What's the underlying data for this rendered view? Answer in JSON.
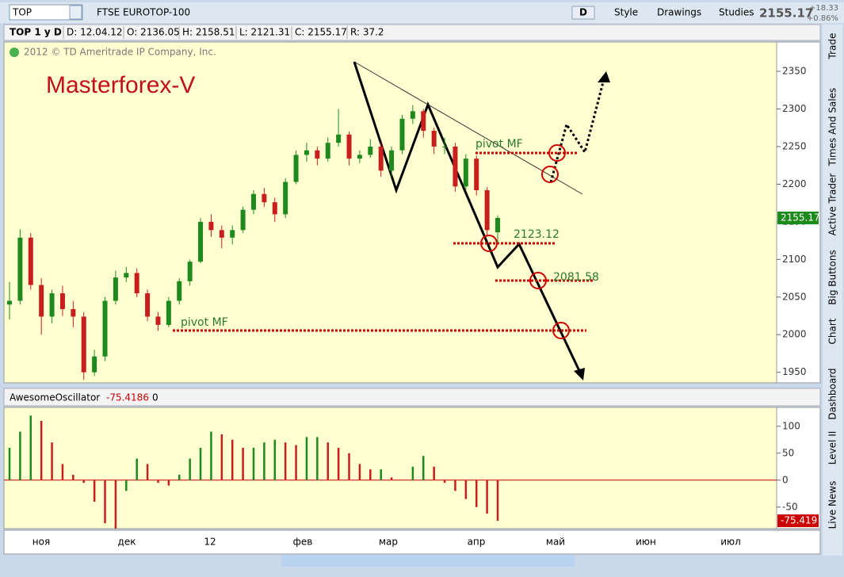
{
  "toolbar": {
    "symbol": "TOP",
    "name": "FTSE EUROTOP-100",
    "buttons": [
      "D",
      "Style",
      "Drawings",
      "Studies"
    ],
    "last": "2155.17",
    "change": "+18.33",
    "change_pct": "+0.86%"
  },
  "info": [
    "TOP 1 y D",
    "D: 12.04.12",
    "O: 2136.05",
    "H: 2158.51",
    "L: 2121.31",
    "C: 2155.17",
    "R: 37.2"
  ],
  "copyright": "2012 © TD Ameritrade IP Company, Inc.",
  "watermark": "Masterforex-V",
  "annotations": [
    "pivot MF",
    "pivot MF",
    "2123.12",
    "2081.58"
  ],
  "months": [
    "ноя",
    "дек",
    "12",
    "фев",
    "мар",
    "апр",
    "май",
    "июн",
    "июл"
  ],
  "side_tabs": [
    "Trade",
    "Times And Sales",
    "Active Trader",
    "Big Buttons",
    "Chart",
    "Dashboard",
    "Level II",
    "Live News"
  ],
  "chart_data": [
    {
      "type": "candlestick",
      "ylim": [
        1936,
        2389
      ],
      "yticks": [
        1950,
        2000,
        2050,
        2100,
        2150,
        2200,
        2250,
        2300,
        2350
      ],
      "last_label": "2155.17",
      "up_color": "#1e8a1e",
      "down_color": "#c81e1e",
      "ohlc": [
        [
          2040,
          2070,
          2020,
          2045
        ],
        [
          2045,
          2140,
          2040,
          2129
        ],
        [
          2129,
          2135,
          2060,
          2066
        ],
        [
          2066,
          2075,
          2000,
          2024
        ],
        [
          2024,
          2060,
          2015,
          2055
        ],
        [
          2055,
          2065,
          2025,
          2034
        ],
        [
          2034,
          2045,
          2010,
          2024
        ],
        [
          2024,
          2030,
          1940,
          1950
        ],
        [
          1950,
          1980,
          1945,
          1971
        ],
        [
          1971,
          2050,
          1965,
          2045
        ],
        [
          2045,
          2085,
          2040,
          2076
        ],
        [
          2076,
          2090,
          2070,
          2082
        ],
        [
          2082,
          2088,
          2050,
          2055
        ],
        [
          2055,
          2060,
          2018,
          2024
        ],
        [
          2024,
          2030,
          2005,
          2013
        ],
        [
          2013,
          2050,
          2010,
          2045
        ],
        [
          2045,
          2075,
          2040,
          2071
        ],
        [
          2071,
          2100,
          2065,
          2097
        ],
        [
          2097,
          2155,
          2095,
          2150
        ],
        [
          2150,
          2160,
          2130,
          2139
        ],
        [
          2139,
          2145,
          2115,
          2129
        ],
        [
          2129,
          2145,
          2120,
          2139
        ],
        [
          2139,
          2170,
          2135,
          2166
        ],
        [
          2166,
          2192,
          2160,
          2187
        ],
        [
          2187,
          2195,
          2170,
          2176
        ],
        [
          2176,
          2182,
          2150,
          2160
        ],
        [
          2160,
          2208,
          2155,
          2203
        ],
        [
          2203,
          2245,
          2200,
          2239
        ],
        [
          2239,
          2255,
          2230,
          2245
        ],
        [
          2245,
          2250,
          2225,
          2234
        ],
        [
          2234,
          2262,
          2230,
          2255
        ],
        [
          2255,
          2300,
          2250,
          2266
        ],
        [
          2266,
          2270,
          2225,
          2234
        ],
        [
          2234,
          2245,
          2228,
          2239
        ],
        [
          2239,
          2260,
          2235,
          2250
        ],
        [
          2250,
          2255,
          2210,
          2218
        ],
        [
          2218,
          2250,
          2210,
          2245
        ],
        [
          2245,
          2292,
          2240,
          2287
        ],
        [
          2287,
          2305,
          2280,
          2297
        ],
        [
          2297,
          2300,
          2262,
          2271
        ],
        [
          2271,
          2275,
          2240,
          2250
        ],
        [
          2250,
          2262,
          2240,
          2250
        ],
        [
          2250,
          2255,
          2190,
          2197
        ],
        [
          2197,
          2240,
          2192,
          2234
        ],
        [
          2234,
          2238,
          2185,
          2192
        ],
        [
          2192,
          2196,
          2130,
          2139
        ],
        [
          2136.05,
          2158.51,
          2121.31,
          2155.17
        ]
      ]
    },
    {
      "type": "bar",
      "title": "AwesomeOscillator",
      "value_label": "-75.4186",
      "param": "0",
      "last_label": "-75.419",
      "ylim": [
        -90,
        135
      ],
      "yticks": [
        100,
        50,
        0,
        -50
      ],
      "up_color": "#1e8a1e",
      "down_color": "#c81e1e",
      "values": [
        60,
        90,
        120,
        110,
        70,
        30,
        10,
        -5,
        -40,
        -80,
        -90,
        -20,
        40,
        30,
        -5,
        -10,
        10,
        40,
        60,
        90,
        85,
        75,
        60,
        60,
        70,
        75,
        70,
        65,
        80,
        80,
        70,
        60,
        50,
        30,
        20,
        20,
        5,
        0,
        25,
        45,
        25,
        -5,
        -20,
        -35,
        -50,
        -62,
        -75.4186
      ]
    }
  ]
}
